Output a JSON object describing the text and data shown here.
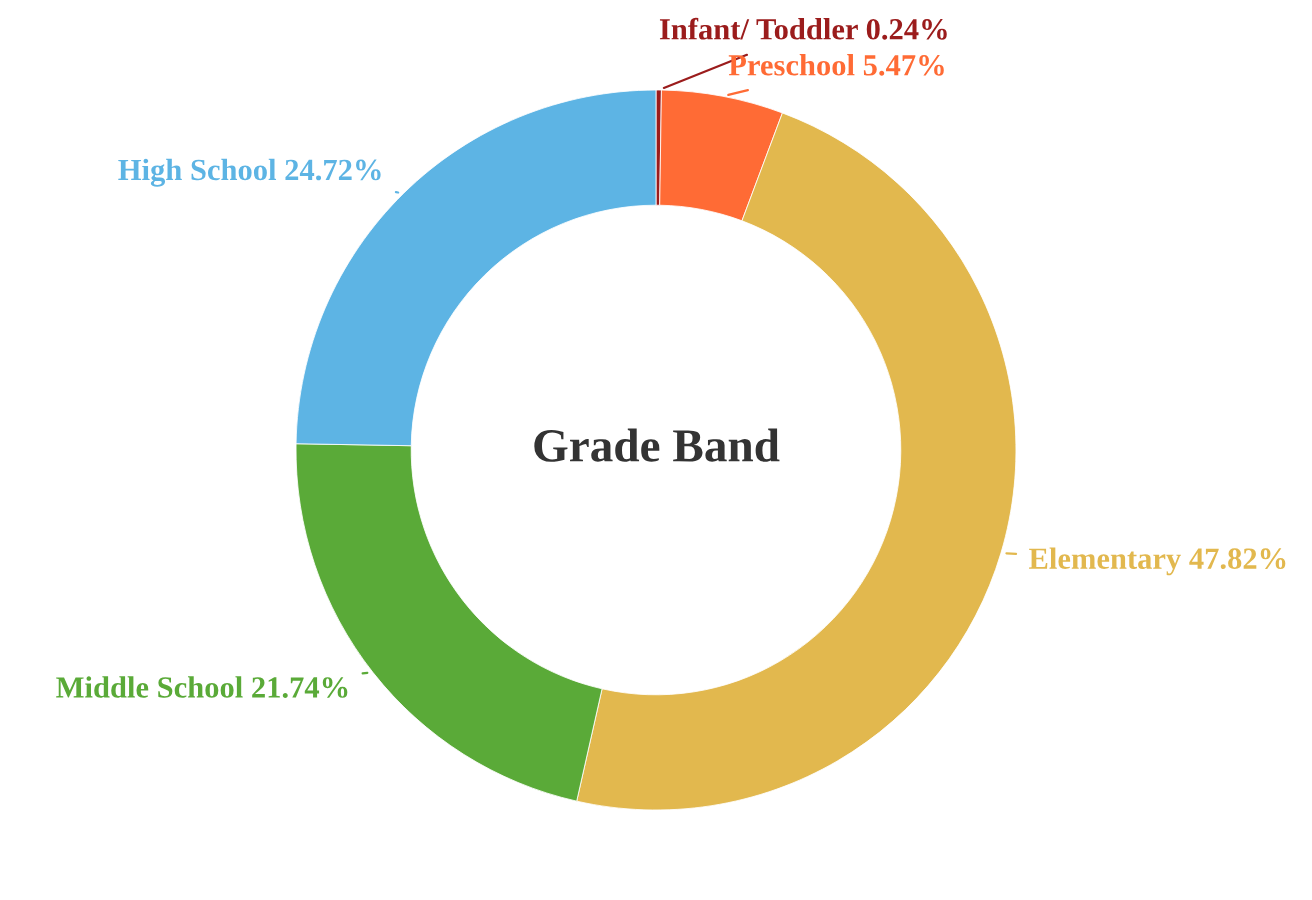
{
  "chart_data": {
    "type": "donut",
    "title": "Grade Band",
    "categories": [
      "Infant/ Toddler",
      "Preschool",
      "Elementary",
      "Middle School",
      "High School"
    ],
    "values": [
      0.24,
      5.47,
      47.82,
      21.74,
      24.72
    ],
    "value_labels": [
      "0.24%",
      "5.47%",
      "47.82%",
      "21.74%",
      "24.72%"
    ],
    "colors": [
      "#9b1c1c",
      "#ff6b35",
      "#e2b84e",
      "#5aaa38",
      "#5db4e4"
    ],
    "legend": false
  }
}
